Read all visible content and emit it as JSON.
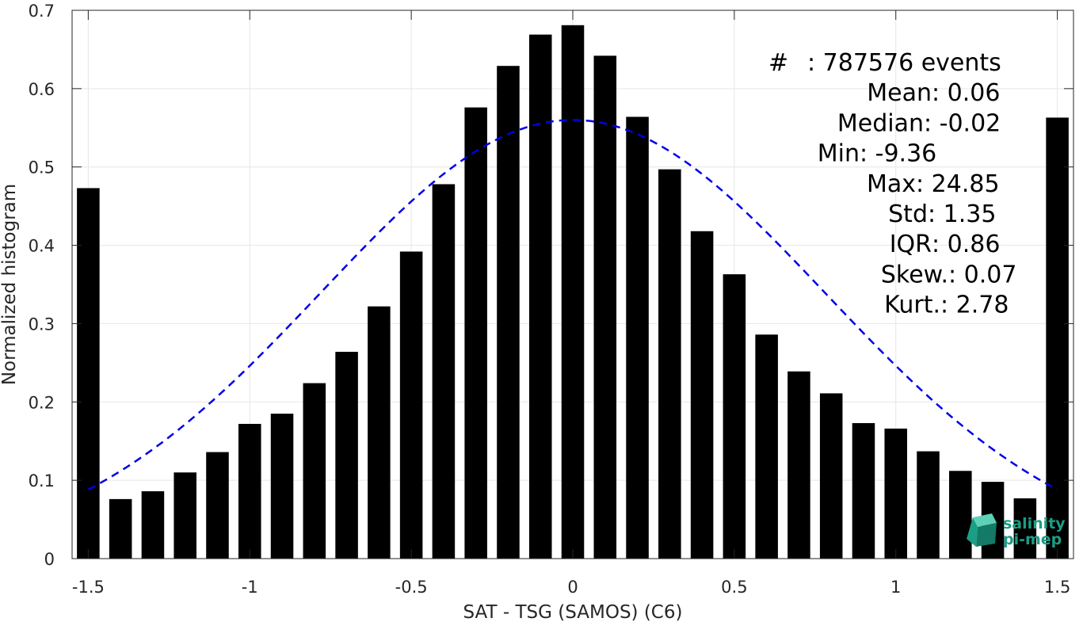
{
  "chart_data": {
    "type": "bar",
    "xlabel": "SAT - TSG (SAMOS) (C6)",
    "ylabel": "Normalized histogram",
    "xlim": [
      -1.55,
      1.55
    ],
    "ylim": [
      0,
      0.7
    ],
    "xticks": [
      -1.5,
      -1,
      -0.5,
      0,
      0.5,
      1,
      1.5
    ],
    "xtick_labels": [
      "-1.5",
      "-1",
      "-0.5",
      "0",
      "0.5",
      "1",
      "1.5"
    ],
    "yticks": [
      0,
      0.1,
      0.2,
      0.3,
      0.4,
      0.5,
      0.6,
      0.7
    ],
    "ytick_labels": [
      "0",
      "0.1",
      "0.2",
      "0.3",
      "0.4",
      "0.5",
      "0.6",
      "0.7"
    ],
    "grid": true,
    "bar_color": "#000000",
    "bar_width": 0.07,
    "x": [
      -1.5,
      -1.4,
      -1.3,
      -1.2,
      -1.1,
      -1.0,
      -0.9,
      -0.8,
      -0.7,
      -0.6,
      -0.5,
      -0.4,
      -0.3,
      -0.2,
      -0.1,
      0.0,
      0.1,
      0.2,
      0.3,
      0.4,
      0.5,
      0.6,
      0.7,
      0.8,
      0.9,
      1.0,
      1.1,
      1.2,
      1.3,
      1.4,
      1.5
    ],
    "values": [
      0.473,
      0.076,
      0.086,
      0.11,
      0.136,
      0.172,
      0.185,
      0.224,
      0.264,
      0.322,
      0.392,
      0.478,
      0.576,
      0.629,
      0.669,
      0.681,
      0.642,
      0.564,
      0.497,
      0.418,
      0.363,
      0.286,
      0.239,
      0.211,
      0.173,
      0.166,
      0.137,
      0.112,
      0.098,
      0.077,
      0.563
    ],
    "fit_curve": {
      "type": "gaussian",
      "mean": 0.0,
      "std": 0.78,
      "peak": 0.56,
      "x_range": [
        -1.5,
        1.5
      ],
      "color": "#0000e6",
      "style": "dashed"
    },
    "stats": [
      {
        "label": "#   ",
        "sep": ": ",
        "value": "787576 events"
      },
      {
        "label": "Mean ",
        "sep": ": ",
        "value": "0.06"
      },
      {
        "label": "Median ",
        "sep": ": ",
        "value": "-0.02"
      },
      {
        "label": "Min ",
        "sep": ": ",
        "value": "-9.36"
      },
      {
        "label": "Max ",
        "sep": ": ",
        "value": "24.85"
      },
      {
        "label": "Std ",
        "sep": ": ",
        "value": "1.35"
      },
      {
        "label": "IQR ",
        "sep": ": ",
        "value": "0.86"
      },
      {
        "label": "Skew. ",
        "sep": ": ",
        "value": "0.07"
      },
      {
        "label": "Kurt. ",
        "sep": ": ",
        "value": "2.78"
      }
    ]
  },
  "logo": {
    "line1": "salinity",
    "line2": "pi-mep",
    "icon": "cube-logo-icon",
    "color": "#1a9e86"
  }
}
